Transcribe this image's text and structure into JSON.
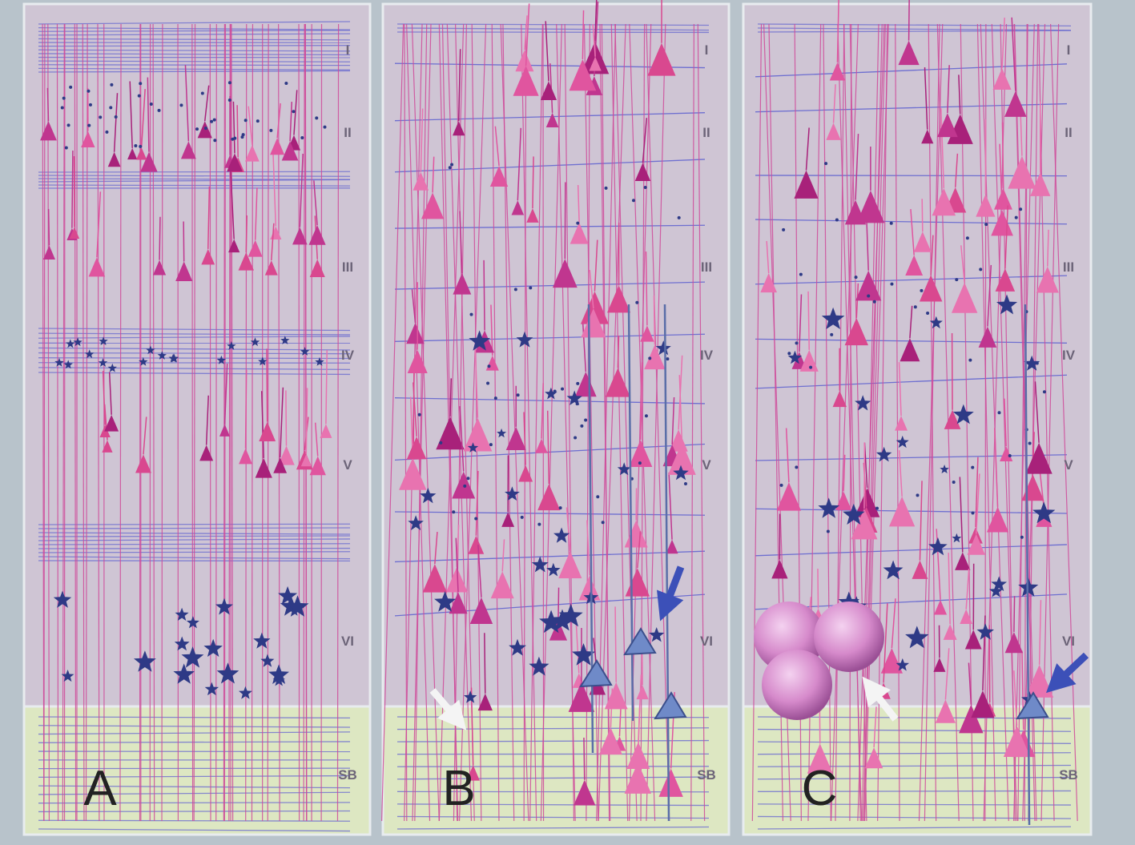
{
  "panels": [
    {
      "label": "A",
      "layers": [
        "I",
        "II",
        "III",
        "IV",
        "V",
        "VI",
        "SB"
      ]
    },
    {
      "label": "B",
      "layers": [
        "I",
        "II",
        "III",
        "IV",
        "V",
        "VI",
        "SB"
      ]
    },
    {
      "label": "C",
      "layers": [
        "I",
        "II",
        "III",
        "IV",
        "V",
        "VI",
        "SB"
      ]
    }
  ]
}
